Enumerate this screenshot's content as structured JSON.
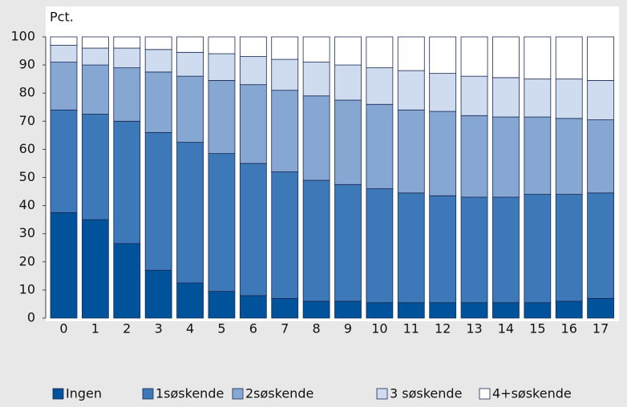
{
  "chart_data": {
    "type": "stacked_bar",
    "ylabel": "Pct.",
    "categories": [
      "0",
      "1",
      "2",
      "3",
      "4",
      "5",
      "6",
      "7",
      "8",
      "9",
      "10",
      "11",
      "12",
      "13",
      "14",
      "15",
      "16",
      "17"
    ],
    "series": [
      {
        "name": "Ingen",
        "color": "#00539a",
        "values": [
          37.5,
          35,
          26.5,
          17,
          12.5,
          9.5,
          8,
          7,
          6,
          6,
          5.5,
          5.5,
          5.5,
          5.5,
          5.5,
          5.5,
          6,
          7
        ]
      },
      {
        "name": "1søskende",
        "color": "#3d78b8",
        "values": [
          36.5,
          37.5,
          43.5,
          49,
          50,
          49,
          47,
          45,
          43,
          41.5,
          40.5,
          39,
          38,
          37.5,
          37.5,
          38.5,
          38,
          37.5
        ]
      },
      {
        "name": "2søskende",
        "color": "#87a7d3",
        "values": [
          17,
          17.5,
          19,
          21.5,
          23.5,
          26,
          28,
          29,
          30,
          30,
          30,
          29.5,
          30,
          29,
          28.5,
          27.5,
          27,
          26
        ]
      },
      {
        "name": "3 søskende",
        "color": "#cfdbee",
        "values": [
          6,
          6,
          7,
          8,
          8.5,
          9.5,
          10,
          11,
          12,
          12.5,
          13,
          14,
          13.5,
          14,
          14,
          13.5,
          14,
          14
        ]
      },
      {
        "name": "4+søskende",
        "color": "#ffffff",
        "values": [
          3,
          4,
          4,
          4.5,
          5.5,
          6,
          7,
          8,
          9,
          10,
          11,
          12,
          13,
          14,
          14.5,
          15,
          15,
          15.5
        ]
      }
    ],
    "ylim": [
      0,
      100
    ],
    "yticks": [
      0,
      10,
      20,
      30,
      40,
      50,
      60,
      70,
      80,
      90,
      100
    ]
  }
}
